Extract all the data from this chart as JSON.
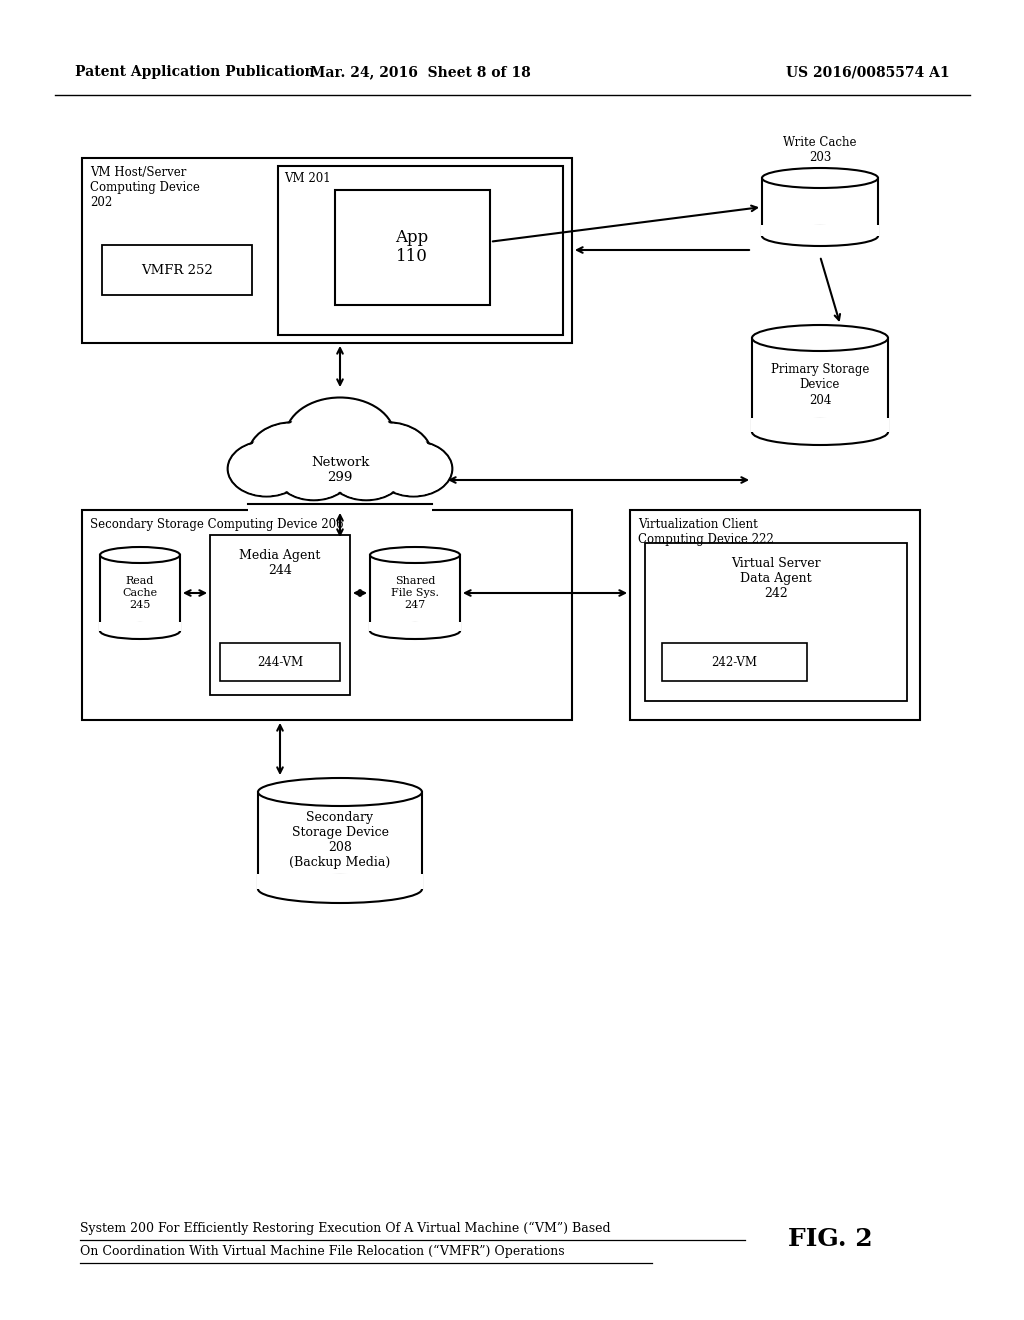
{
  "bg_color": "#ffffff",
  "header_left": "Patent Application Publication",
  "header_mid": "Mar. 24, 2016  Sheet 8 of 18",
  "header_right": "US 2016/0085574 A1",
  "fig_label": "FIG. 2",
  "caption_line1": "System 200 For Efficiently Restoring Execution Of A Virtual Machine (“VM”) Based",
  "caption_line2": "On Coordination With Virtual Machine File Relocation (“VMFR”) Operations"
}
